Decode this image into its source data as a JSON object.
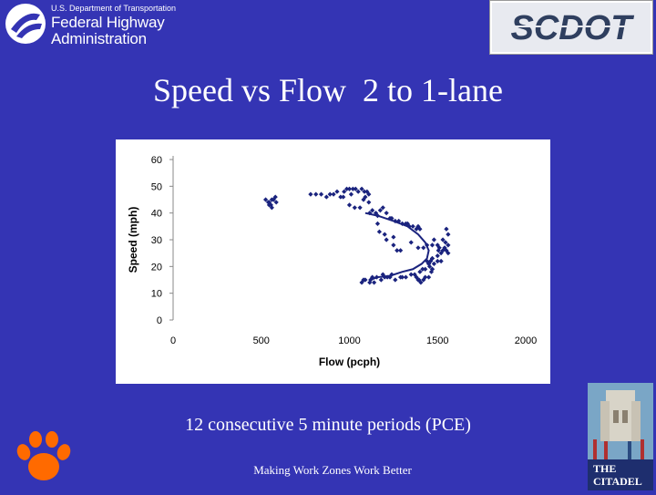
{
  "header": {
    "fhwa_line1": "U.S. Department of Transportation",
    "fhwa_line2": "Federal Highway",
    "fhwa_line3": "Administration",
    "scdot_logo_text": "SCDOT"
  },
  "slide": {
    "title": "Speed vs Flow  2 to 1-lane",
    "caption": "12 consecutive 5 minute periods (PCE)",
    "footer": "Making Work Zones Work Better"
  },
  "logos": {
    "clemson": "clemson-paw-logo",
    "citadel_text": "THE CITADEL"
  },
  "colors": {
    "background": "#3434b4",
    "data_points": "#1a237e",
    "trend_line": "#1a237e"
  },
  "chart_data": {
    "type": "scatter",
    "xlabel": "Flow (pcph)",
    "ylabel": "Speed (mph)",
    "xlim": [
      0,
      2000
    ],
    "ylim": [
      0,
      60
    ],
    "xticks": [
      "0",
      "500",
      "1000",
      "1500",
      "2000"
    ],
    "yticks": [
      "0",
      "10",
      "20",
      "30",
      "40",
      "50",
      "60"
    ],
    "grid": false,
    "legend": false,
    "series": [
      {
        "kind": "points",
        "x": [
          525,
          540,
          555,
          560,
          570,
          580,
          560,
          545,
          545,
          585,
          780,
          810,
          840,
          870,
          890,
          910,
          930,
          950,
          965,
          970,
          985,
          1000,
          1010,
          1020,
          1035,
          1050,
          1070,
          1085,
          1100,
          1110,
          1000,
          1030,
          1060,
          1080,
          1090,
          1110,
          1115,
          1130,
          1150,
          1160,
          1175,
          1190,
          1210,
          1230,
          1240,
          1260,
          1280,
          1300,
          1320,
          1330,
          1340,
          1360,
          1380,
          1390,
          1400,
          1160,
          1170,
          1200,
          1210,
          1250,
          1270,
          1290,
          1250,
          1350,
          1390,
          1420,
          1440,
          1470,
          1480,
          1500,
          1510,
          1520,
          1530,
          1540,
          1550,
          1560,
          1550,
          1560,
          1530,
          1545,
          1560,
          1505,
          1470,
          1500,
          1520,
          1450,
          1455,
          1470,
          1440,
          1460,
          1480,
          1470,
          1465,
          1450,
          1395,
          1380,
          1390,
          1405,
          1420,
          1430,
          1300,
          1240,
          1230,
          1215,
          1190,
          1155,
          1130,
          1120,
          1115,
          1090,
          1080,
          1070,
          1140,
          1180,
          1200,
          1260,
          1290,
          1320,
          1350,
          1370,
          1400,
          1415,
          1430,
          1450,
          1460,
          1470,
          1500
        ],
        "y": [
          45,
          44,
          43,
          42,
          45,
          46,
          45,
          44,
          43,
          44,
          47,
          47,
          47,
          46,
          47,
          47,
          48,
          46,
          46,
          48,
          49,
          49,
          47,
          49,
          49,
          48,
          49,
          48,
          48,
          47,
          43,
          42,
          42,
          45,
          46,
          44,
          40,
          41,
          40,
          39,
          41,
          42,
          40,
          38,
          38,
          37,
          37,
          36,
          36,
          36,
          35,
          35,
          34,
          35,
          34,
          36,
          33,
          32,
          30,
          28,
          26,
          26,
          31,
          29,
          27,
          27,
          28,
          28,
          30,
          28,
          27,
          25,
          26,
          27,
          26,
          25,
          34,
          32,
          30,
          29,
          28,
          26,
          23,
          24,
          22,
          21,
          20,
          19,
          22,
          22,
          21,
          19,
          18,
          16,
          15,
          16,
          15,
          14,
          15,
          16,
          16,
          17,
          16,
          16,
          17,
          16,
          16,
          15,
          14,
          15,
          15,
          14,
          14,
          15,
          16,
          15,
          16,
          16,
          17,
          17,
          18,
          19,
          19,
          21,
          22,
          23,
          22
        ]
      },
      {
        "kind": "line",
        "x": [
          1090,
          1160,
          1250,
          1330,
          1390,
          1430,
          1450,
          1440,
          1410,
          1360,
          1300,
          1230,
          1160,
          1120
        ],
        "y": [
          40,
          39,
          37,
          35,
          32,
          29,
          26,
          23,
          21,
          19,
          18,
          16.5,
          16,
          15
        ]
      }
    ]
  }
}
